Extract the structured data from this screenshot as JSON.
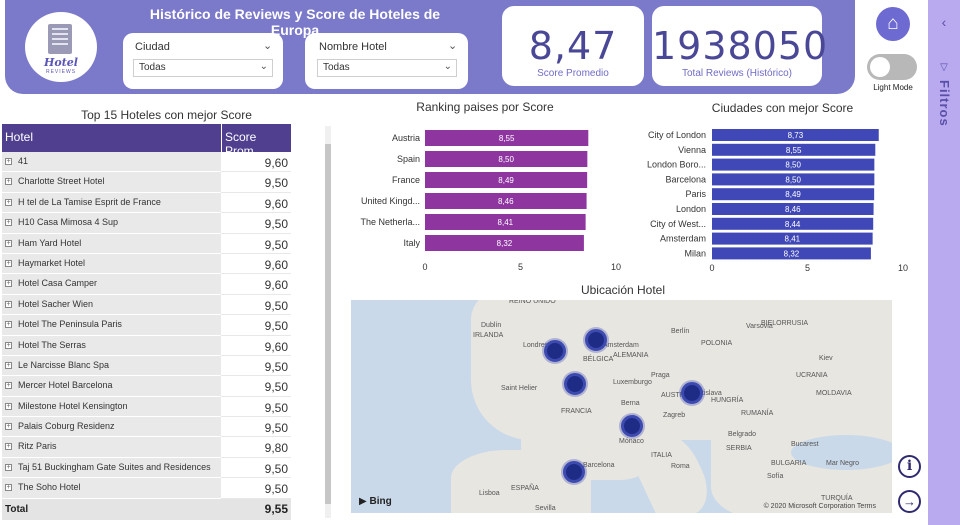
{
  "header": {
    "title": "Histórico de Reviews y Score de Hoteles de Europa",
    "logo": {
      "text": "Hotel",
      "subtext": "REVIEWS"
    },
    "slicers": [
      {
        "label": "Ciudad",
        "value": "Todas"
      },
      {
        "label": "Nombre Hotel",
        "value": "Todas"
      }
    ],
    "cards": [
      {
        "value": "8,47",
        "caption": "Score Promedio"
      },
      {
        "value": "1938050",
        "caption": "Total Reviews (Histórico)"
      }
    ],
    "home_icon": "home-icon",
    "toggle_label": "Light Mode"
  },
  "filters_pane": {
    "label": "Filtros"
  },
  "table": {
    "title": "Top 15 Hoteles con mejor Score",
    "columns": [
      "Hotel",
      "Score Prom."
    ],
    "rows": [
      {
        "name": "41",
        "score": "9,60"
      },
      {
        "name": "Charlotte Street Hotel",
        "score": "9,50"
      },
      {
        "name": "H tel de La Tamise Esprit de France",
        "score": "9,60"
      },
      {
        "name": "H10 Casa Mimosa 4 Sup",
        "score": "9,50"
      },
      {
        "name": "Ham Yard Hotel",
        "score": "9,50"
      },
      {
        "name": "Haymarket Hotel",
        "score": "9,60"
      },
      {
        "name": "Hotel Casa Camper",
        "score": "9,60"
      },
      {
        "name": "Hotel Sacher Wien",
        "score": "9,50"
      },
      {
        "name": "Hotel The Peninsula Paris",
        "score": "9,50"
      },
      {
        "name": "Hotel The Serras",
        "score": "9,60"
      },
      {
        "name": "Le Narcisse Blanc Spa",
        "score": "9,50"
      },
      {
        "name": "Mercer Hotel Barcelona",
        "score": "9,50"
      },
      {
        "name": "Milestone Hotel Kensington",
        "score": "9,50"
      },
      {
        "name": "Palais Coburg Residenz",
        "score": "9,50"
      },
      {
        "name": "Ritz Paris",
        "score": "9,80"
      },
      {
        "name": "Taj 51 Buckingham Gate Suites and Residences",
        "score": "9,50"
      },
      {
        "name": "The Soho Hotel",
        "score": "9,50"
      }
    ],
    "total_label": "Total",
    "total_value": "9,55"
  },
  "chart_data": [
    {
      "type": "bar",
      "orientation": "horizontal",
      "title": "Ranking paises por Score",
      "categories": [
        "Austria",
        "Spain",
        "France",
        "United Kingd...",
        "The Netherla...",
        "Italy"
      ],
      "values": [
        8.55,
        8.5,
        8.49,
        8.46,
        8.41,
        8.32
      ],
      "data_labels": [
        "8,55",
        "8,50",
        "8,49",
        "8,46",
        "8,41",
        "8,32"
      ],
      "xlim": [
        0,
        10
      ],
      "xticks": [
        0,
        5,
        10
      ],
      "color": "#8e35a0"
    },
    {
      "type": "bar",
      "orientation": "horizontal",
      "title": "Ciudades con mejor Score",
      "categories": [
        "City of London",
        "Vienna",
        "London Boro...",
        "Barcelona",
        "Paris",
        "London",
        "City of West...",
        "Amsterdam",
        "Milan"
      ],
      "values": [
        8.73,
        8.55,
        8.5,
        8.5,
        8.49,
        8.46,
        8.44,
        8.41,
        8.32
      ],
      "data_labels": [
        "8,73",
        "8,55",
        "8,50",
        "8,50",
        "8,49",
        "8,46",
        "8,44",
        "8,41",
        "8,32"
      ],
      "xlim": [
        0,
        10
      ],
      "xticks": [
        0,
        5,
        10
      ],
      "color": "#3f48b6"
    }
  ],
  "map": {
    "title": "Ubicación Hotel",
    "labels": [
      "REINO UNIDO",
      "Dublín",
      "IRLANDA",
      "Londres",
      "Ámsterdam",
      "BÉLGICA",
      "ALEMANIA",
      "Berlín",
      "POLONIA",
      "Varsovia",
      "BIELORRUSIA",
      "Kiev",
      "UCRANIA",
      "Luxemburgo",
      "Praga",
      "Saint Helier",
      "FRANCIA",
      "Berna",
      "AUSTRIA",
      "Bratislava",
      "HUNGRÍA",
      "MOLDAVIA",
      "Zagreb",
      "RUMANÍA",
      "Bucarest",
      "Belgrado",
      "Mónaco",
      "SERBIA",
      "BULGARIA",
      "ITALIA",
      "Roma",
      "Sofía",
      "Mar Negro",
      "Barcelona",
      "Sevilla",
      "Lisboa",
      "ESPAÑA",
      "TURQUÍA"
    ],
    "attribution": "Bing",
    "copyright": "© 2020 Microsoft Corporation  Terms"
  }
}
